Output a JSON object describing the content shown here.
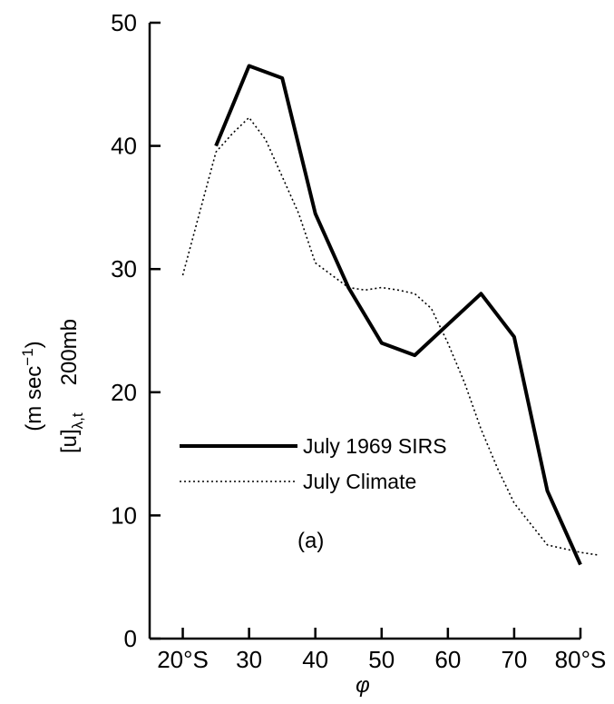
{
  "chart_data": {
    "type": "line",
    "xlabel": "φ",
    "ylabel_parts": {
      "main": "[u]",
      "sub": "λ,t",
      "level": "200mb",
      "units_open": "(m sec",
      "units_exp": "−1",
      "units_close": ")"
    },
    "xlim": [
      15,
      80
    ],
    "ylim": [
      0,
      50
    ],
    "x_ticks": [
      {
        "value": 20,
        "label": "20°S"
      },
      {
        "value": 30,
        "label": "30"
      },
      {
        "value": 40,
        "label": "40"
      },
      {
        "value": 50,
        "label": "50"
      },
      {
        "value": 60,
        "label": "60"
      },
      {
        "value": 70,
        "label": "70"
      },
      {
        "value": 80,
        "label": "80°S"
      }
    ],
    "y_ticks": [
      {
        "value": 0,
        "label": "0"
      },
      {
        "value": 10,
        "label": "10"
      },
      {
        "value": 20,
        "label": "20"
      },
      {
        "value": 30,
        "label": "30"
      },
      {
        "value": 40,
        "label": "40"
      },
      {
        "value": 50,
        "label": "50"
      }
    ],
    "series": [
      {
        "name": "July 1969 SIRS",
        "style": "solid",
        "color": "#000000",
        "x": [
          25,
          30,
          35,
          40,
          45,
          50,
          55,
          60,
          65,
          70,
          75,
          80
        ],
        "y": [
          40,
          46.5,
          45.5,
          34.5,
          28.5,
          24,
          23,
          25.5,
          28,
          24.5,
          12,
          6
        ]
      },
      {
        "name": "July Climate",
        "style": "dotted",
        "color": "#000000",
        "x": [
          20,
          22.5,
          25,
          27.5,
          30,
          32.5,
          35,
          37.5,
          40,
          42.5,
          45,
          47.5,
          50,
          52.5,
          55,
          57.5,
          60,
          62.5,
          65,
          67.5,
          70,
          72.5,
          75,
          77.5,
          80,
          82.5
        ],
        "y": [
          29.5,
          34.5,
          39.5,
          41,
          42.3,
          40.5,
          37.5,
          34.5,
          30.5,
          29.5,
          28.5,
          28.3,
          28.5,
          28.3,
          28,
          26.8,
          24,
          20.8,
          17,
          13.8,
          11,
          9.3,
          7.6,
          7.3,
          7,
          6.8
        ]
      }
    ],
    "legend": {
      "placement": "center-left"
    },
    "annotations": [
      {
        "text": "(a)"
      }
    ],
    "grid": false
  }
}
